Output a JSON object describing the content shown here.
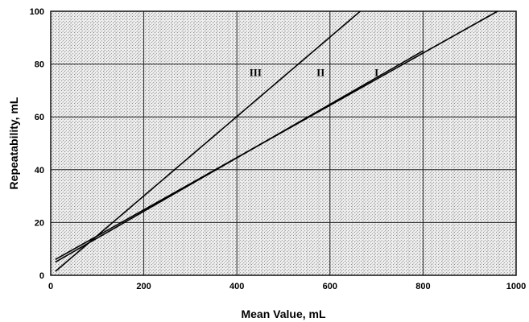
{
  "chart_data": {
    "type": "line",
    "title": "",
    "xlabel": "Mean Value, mL",
    "ylabel": "Repeatability, mL",
    "xlim": [
      0,
      1000
    ],
    "ylim": [
      0,
      100
    ],
    "xticks": [
      0,
      200,
      400,
      600,
      800,
      1000
    ],
    "yticks": [
      0,
      20,
      40,
      60,
      80,
      100
    ],
    "grid": true,
    "background": "stippled gray",
    "series": [
      {
        "name": "I",
        "x": [
          10,
          960
        ],
        "y": [
          6,
          100
        ]
      },
      {
        "name": "II",
        "x": [
          10,
          800
        ],
        "y": [
          5,
          85
        ]
      },
      {
        "name": "III",
        "x": [
          10,
          665
        ],
        "y": [
          1.5,
          100
        ]
      }
    ],
    "annotations": [
      {
        "text": "III",
        "x": 440,
        "y": 77
      },
      {
        "text": "II",
        "x": 580,
        "y": 77
      },
      {
        "text": "I",
        "x": 700,
        "y": 77
      }
    ]
  }
}
